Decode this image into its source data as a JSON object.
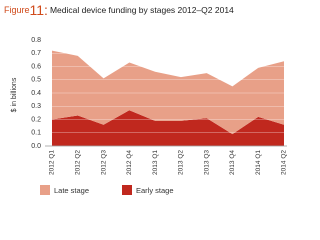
{
  "chart_data": {
    "type": "stacked_area",
    "figure_label": "Figure",
    "figure_number": "11:",
    "title": "Medical device funding by stages 2012–Q2 2014",
    "y_label": "$ in billions",
    "categories": [
      "2012 Q1",
      "2012 Q2",
      "2012 Q3",
      "2012 Q4",
      "2013 Q1",
      "2013 Q2",
      "2013 Q3",
      "2013 Q4",
      "2014 Q1",
      "2014 Q2"
    ],
    "series": [
      {
        "name": "Early stage",
        "color": "#c0281e",
        "values": [
          0.2,
          0.23,
          0.16,
          0.27,
          0.19,
          0.19,
          0.21,
          0.09,
          0.22,
          0.16
        ]
      },
      {
        "name": "Late stage",
        "color": "#e8a088",
        "values": [
          0.52,
          0.45,
          0.35,
          0.36,
          0.37,
          0.33,
          0.34,
          0.36,
          0.37,
          0.48
        ]
      }
    ],
    "ylim": [
      0,
      0.8
    ],
    "yticks": [
      {
        "value": 0,
        "label": "0.0"
      },
      0.1,
      0.2,
      0.3,
      0.4,
      0.5,
      0.6,
      0.7,
      0.8
    ],
    "grid": true
  }
}
